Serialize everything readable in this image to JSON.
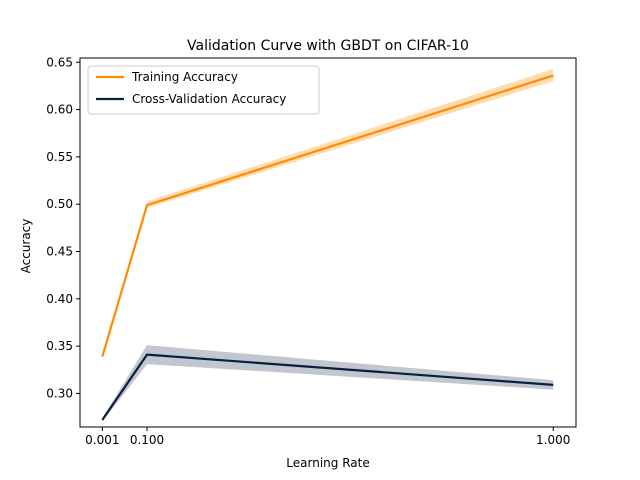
{
  "chart_data": {
    "type": "line",
    "title": "Validation Curve with GBDT on CIFAR-10",
    "xlabel": "Learning Rate",
    "ylabel": "Accuracy",
    "xlim": [
      -0.0485,
      1.0505
    ],
    "ylim": [
      0.2645,
      0.6545
    ],
    "x_ticks": [
      0.001,
      0.1,
      1.0
    ],
    "x_tick_labels": [
      "0.001",
      "0.100",
      "1.000"
    ],
    "y_ticks": [
      0.3,
      0.35,
      0.4,
      0.45,
      0.5,
      0.55,
      0.6,
      0.65
    ],
    "y_tick_labels": [
      "0.30",
      "0.35",
      "0.40",
      "0.45",
      "0.50",
      "0.55",
      "0.60",
      "0.65"
    ],
    "grid": false,
    "legend_position": "top-left",
    "x": [
      0.001,
      0.1,
      1.0
    ],
    "series": [
      {
        "name": "Training Accuracy",
        "color": "#ff8c00",
        "values": [
          0.339,
          0.499,
          0.636
        ],
        "band_lower": [
          0.337,
          0.496,
          0.63
        ],
        "band_upper": [
          0.341,
          0.503,
          0.643
        ]
      },
      {
        "name": "Cross-Validation Accuracy",
        "color": "#0a2040",
        "values": [
          0.272,
          0.341,
          0.309
        ],
        "band_lower": [
          0.27,
          0.331,
          0.304
        ],
        "band_upper": [
          0.274,
          0.351,
          0.314
        ]
      }
    ]
  }
}
